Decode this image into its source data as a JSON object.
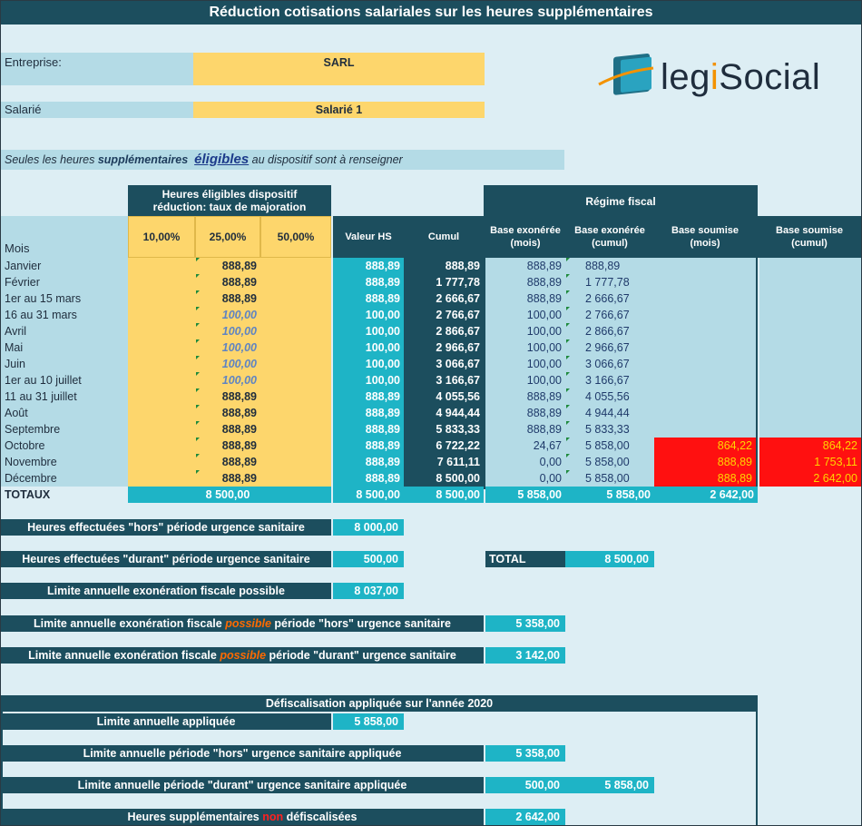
{
  "title": "Réduction cotisations salariales sur les heures supplémentaires",
  "entreprise": {
    "label": "Entreprise:",
    "value": "SARL"
  },
  "salarie": {
    "label": "Salarié",
    "value": "Salarié 1"
  },
  "note": {
    "part1": "Seules les heures ",
    "part2": "supplémentaires",
    "part3": "éligibles",
    "part4": " au dispositif sont à renseigner"
  },
  "logo": {
    "name": "legiSocial",
    "prefix": "leg",
    "accent": "i",
    "suffix": "Social",
    "icon": "legisocial-logo-icon",
    "accent_color": "#f39200"
  },
  "headers": {
    "mois": "Mois",
    "eligibles_line1": "Heures éligibles dispositif",
    "eligibles_line2": "réduction: taux de majoration",
    "taux": [
      "10,00%",
      "25,00%",
      "50,00%"
    ],
    "valeur_hs": "Valeur HS",
    "cumul": "Cumul",
    "regime_fiscal": "Régime fiscal",
    "base_exo_mois_1": "Base exonérée",
    "base_exo_mois_2": "(mois)",
    "base_exo_cumul_1": "Base exonérée",
    "base_exo_cumul_2": "(cumul)",
    "base_soum_mois_1": "Base soumise",
    "base_soum_mois_2": "(mois)",
    "base_soum_cumul_1": "Base soumise",
    "base_soum_cumul_2": "(cumul)"
  },
  "rows": [
    {
      "mois": "Janvier",
      "h25": "888,89",
      "italic": false,
      "valeur": "888,89",
      "cumul": "888,89",
      "exo_mois": "888,89",
      "exo_cumul": "888,89",
      "soum_mois": "",
      "soum_cumul": ""
    },
    {
      "mois": "Février",
      "h25": "888,89",
      "italic": false,
      "valeur": "888,89",
      "cumul": "1 777,78",
      "exo_mois": "888,89",
      "exo_cumul": "1 777,78",
      "soum_mois": "",
      "soum_cumul": ""
    },
    {
      "mois": "1er au 15 mars",
      "h25": "888,89",
      "italic": false,
      "valeur": "888,89",
      "cumul": "2 666,67",
      "exo_mois": "888,89",
      "exo_cumul": "2 666,67",
      "soum_mois": "",
      "soum_cumul": ""
    },
    {
      "mois": "16 au 31 mars",
      "h25": "100,00",
      "italic": true,
      "valeur": "100,00",
      "cumul": "2 766,67",
      "exo_mois": "100,00",
      "exo_cumul": "2 766,67",
      "soum_mois": "",
      "soum_cumul": ""
    },
    {
      "mois": "Avril",
      "h25": "100,00",
      "italic": true,
      "valeur": "100,00",
      "cumul": "2 866,67",
      "exo_mois": "100,00",
      "exo_cumul": "2 866,67",
      "soum_mois": "",
      "soum_cumul": ""
    },
    {
      "mois": "Mai",
      "h25": "100,00",
      "italic": true,
      "valeur": "100,00",
      "cumul": "2 966,67",
      "exo_mois": "100,00",
      "exo_cumul": "2 966,67",
      "soum_mois": "",
      "soum_cumul": ""
    },
    {
      "mois": "Juin",
      "h25": "100,00",
      "italic": true,
      "valeur": "100,00",
      "cumul": "3 066,67",
      "exo_mois": "100,00",
      "exo_cumul": "3 066,67",
      "soum_mois": "",
      "soum_cumul": ""
    },
    {
      "mois": "1er au 10 juillet",
      "h25": "100,00",
      "italic": true,
      "valeur": "100,00",
      "cumul": "3 166,67",
      "exo_mois": "100,00",
      "exo_cumul": "3 166,67",
      "soum_mois": "",
      "soum_cumul": ""
    },
    {
      "mois": "11 au 31 juillet",
      "h25": "888,89",
      "italic": false,
      "valeur": "888,89",
      "cumul": "4 055,56",
      "exo_mois": "888,89",
      "exo_cumul": "4 055,56",
      "soum_mois": "",
      "soum_cumul": ""
    },
    {
      "mois": "Août",
      "h25": "888,89",
      "italic": false,
      "valeur": "888,89",
      "cumul": "4 944,44",
      "exo_mois": "888,89",
      "exo_cumul": "4 944,44",
      "soum_mois": "",
      "soum_cumul": ""
    },
    {
      "mois": "Septembre",
      "h25": "888,89",
      "italic": false,
      "valeur": "888,89",
      "cumul": "5 833,33",
      "exo_mois": "888,89",
      "exo_cumul": "5 833,33",
      "soum_mois": "",
      "soum_cumul": ""
    },
    {
      "mois": "Octobre",
      "h25": "888,89",
      "italic": false,
      "valeur": "888,89",
      "cumul": "6 722,22",
      "exo_mois": "24,67",
      "exo_cumul": "5 858,00",
      "soum_mois": "864,22",
      "soum_cumul": "864,22"
    },
    {
      "mois": "Novembre",
      "h25": "888,89",
      "italic": false,
      "valeur": "888,89",
      "cumul": "7 611,11",
      "exo_mois": "0,00",
      "exo_cumul": "5 858,00",
      "soum_mois": "888,89",
      "soum_cumul": "1 753,11"
    },
    {
      "mois": "Décembre",
      "h25": "888,89",
      "italic": false,
      "valeur": "888,89",
      "cumul": "8 500,00",
      "exo_mois": "0,00",
      "exo_cumul": "5 858,00",
      "soum_mois": "888,89",
      "soum_cumul": "2 642,00"
    }
  ],
  "totaux": {
    "label": "TOTAUX",
    "heures": "8 500,00",
    "valeur": "8 500,00",
    "cumul": "8 500,00",
    "exo_mois": "5 858,00",
    "exo_cumul": "5 858,00",
    "soumise": "2 642,00"
  },
  "stats": {
    "hors_label": "Heures effectuées \"hors\" période urgence sanitaire",
    "hors_value": "8 000,00",
    "durant_label": "Heures effectuées \"durant\" période urgence sanitaire",
    "durant_value": "500,00",
    "total_label": "TOTAL",
    "total_value": "8 500,00",
    "limite_label": "Limite annuelle exonération fiscale possible",
    "limite_value": "8 037,00",
    "limite_hors_part1": "Limite annuelle exonération fiscale ",
    "limite_hors_possible": "possible",
    "limite_hors_part2": " période \"hors\" urgence sanitaire",
    "limite_hors_value": "5 358,00",
    "limite_durant_part1": "Limite annuelle exonération fiscale ",
    "limite_durant_possible": "possible",
    "limite_durant_part2": " période \"durant\" urgence sanitaire",
    "limite_durant_value": "3 142,00"
  },
  "defisc": {
    "title": "Défiscalisation appliquée sur l'année 2020",
    "appliquee_label": "Limite annuelle appliquée",
    "appliquee_value": "5 858,00",
    "hors_label": "Limite annuelle période \"hors\" urgence sanitaire appliquée",
    "hors_value": "5 358,00",
    "durant_label": "Limite annuelle période \"durant\" urgence sanitaire appliquée",
    "durant_value": "500,00",
    "durant_total": "5 858,00",
    "non_part1": "Heures supplémentaires ",
    "non_word": "non",
    "non_part2": " défiscalisées",
    "non_value": "2 642,00"
  }
}
